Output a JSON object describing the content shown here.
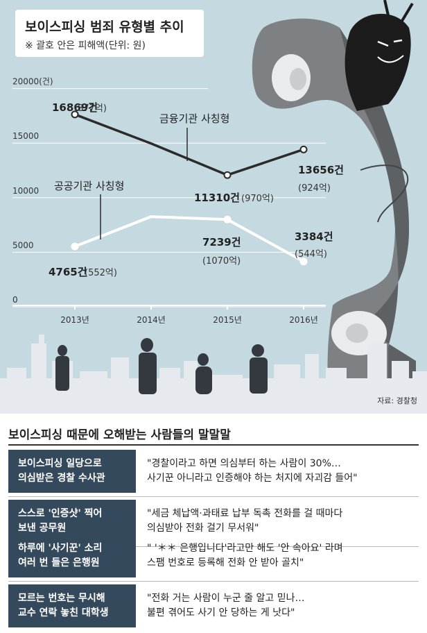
{
  "title": "보이스피싱 범죄 유형별 추이",
  "subtitle": "※ 괄호 안은 피해액(단위: 원)",
  "source": "자료: 경찰청",
  "chart_data": {
    "type": "line",
    "title": "보이스피싱 범죄 유형별 추이",
    "subtitle": "※ 괄호 안은 피해액(단위: 원)",
    "categories": [
      "2013년",
      "2014년",
      "2015년",
      "2016년"
    ],
    "y_ticks": [
      "20000(건)",
      "15000",
      "10000",
      "5000",
      "0"
    ],
    "ylim": [
      0,
      20000
    ],
    "grid": true,
    "series": [
      {
        "name": "금융기관 사칭형",
        "values": [
          16869,
          14200,
          11310,
          13656
        ],
        "value_labels": [
          "16869건",
          "",
          "11310건",
          "13656건"
        ],
        "damage_labels": [
          "(877억)",
          "",
          "(970억)",
          "(924억)"
        ]
      },
      {
        "name": "공공기관 사칭형",
        "values": [
          4765,
          7500,
          7239,
          3384
        ],
        "value_labels": [
          "4765건",
          "",
          "7239건",
          "3384건"
        ],
        "damage_labels": [
          "(552억)",
          "",
          "(1070억)",
          "(544억)"
        ]
      }
    ],
    "colors": {
      "financial": "#2b2b2b",
      "public": "#ffffff",
      "background": "#c5d9e0"
    }
  },
  "quotes": {
    "title": "보이스피싱 때문에 오해받는 사람들의 말말말",
    "rows": [
      {
        "label": [
          "보이스피싱 일당으로",
          "의심받은 경찰 수사관"
        ],
        "text": [
          "\"경찰이라고 하면 의심부터 하는 사람이 30%…",
          "사기꾼 아니라고 인증해야 하는 처지에 자괴감 들어\""
        ]
      },
      {
        "label": [
          "스스로 '인증샷' 찍어",
          "보낸 공무원"
        ],
        "text": [
          "\"세금 체납액·과태료 납부 독촉 전화를 걸 때마다",
          "의심받아 전화 걸기 무서워\""
        ]
      },
      {
        "label": [
          "하루에 '사기꾼' 소리",
          "여러 번 들은 은행원"
        ],
        "text": [
          "\" '＊＊ 은행입니다'라고만 해도 '안 속아요' 라며",
          "스팸 번호로 등록해 전화 안 받아 골치\""
        ]
      },
      {
        "label": [
          "모르는 번호는 무시해",
          "교수 연락 놓친 대학생"
        ],
        "text": [
          "\"전화 거는 사람이 누군 줄 알고 믿나…",
          "불편 겪어도 사기 안 당하는 게 낫다\""
        ]
      }
    ]
  }
}
